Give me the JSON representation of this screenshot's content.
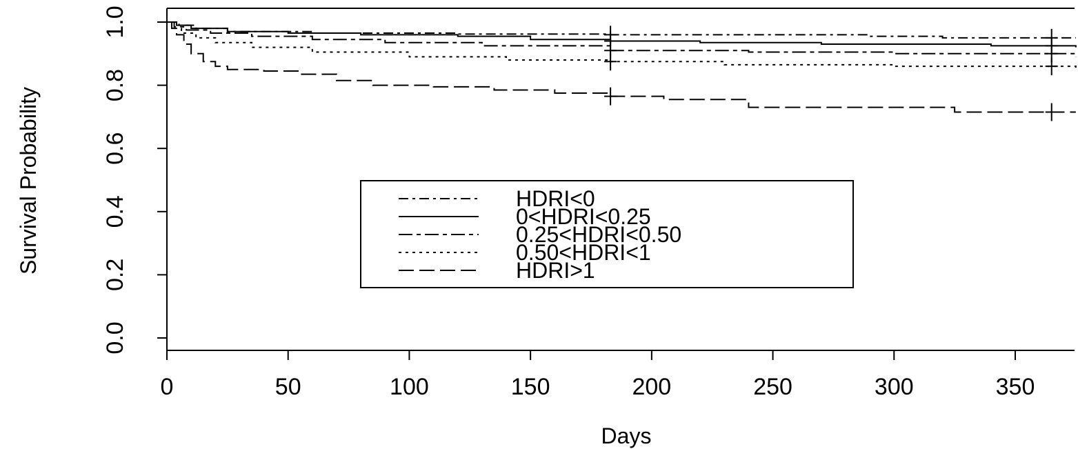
{
  "chart_data": {
    "type": "line",
    "title": "",
    "xlabel": "Days",
    "ylabel": "Survival Probability",
    "xlim": [
      0,
      375
    ],
    "ylim": [
      0,
      1
    ],
    "xticks": [
      0,
      50,
      100,
      150,
      200,
      250,
      300,
      350
    ],
    "yticks": [
      0.0,
      0.2,
      0.4,
      0.6,
      0.8,
      1.0
    ],
    "xtick_labels": [
      "0",
      "50",
      "100",
      "150",
      "200",
      "250",
      "300",
      "350"
    ],
    "ytick_labels": [
      "0.0",
      "0.2",
      "0.4",
      "0.6",
      "0.8",
      "1.0"
    ],
    "legend_position": "center",
    "censor_x": [
      183,
      365
    ],
    "series": [
      {
        "name": "HDRI<0",
        "style": "dashdot",
        "points": [
          [
            0,
            1.0
          ],
          [
            5,
            0.99
          ],
          [
            12,
            0.98
          ],
          [
            25,
            0.97
          ],
          [
            60,
            0.965
          ],
          [
            120,
            0.962
          ],
          [
            183,
            0.96
          ],
          [
            290,
            0.955
          ],
          [
            320,
            0.95
          ],
          [
            375,
            0.95
          ]
        ]
      },
      {
        "name": "0<HDRI<0.25",
        "style": "solid",
        "points": [
          [
            0,
            1.0
          ],
          [
            4,
            0.99
          ],
          [
            10,
            0.98
          ],
          [
            25,
            0.97
          ],
          [
            50,
            0.965
          ],
          [
            80,
            0.96
          ],
          [
            120,
            0.955
          ],
          [
            150,
            0.945
          ],
          [
            183,
            0.94
          ],
          [
            220,
            0.935
          ],
          [
            270,
            0.93
          ],
          [
            340,
            0.925
          ],
          [
            375,
            0.92
          ]
        ]
      },
      {
        "name": "0.25<HDRI<0.50",
        "style": "longdashdot",
        "points": [
          [
            0,
            1.0
          ],
          [
            3,
            0.985
          ],
          [
            8,
            0.975
          ],
          [
            18,
            0.965
          ],
          [
            35,
            0.955
          ],
          [
            60,
            0.945
          ],
          [
            90,
            0.935
          ],
          [
            130,
            0.925
          ],
          [
            183,
            0.91
          ],
          [
            240,
            0.905
          ],
          [
            300,
            0.9
          ],
          [
            375,
            0.89
          ]
        ]
      },
      {
        "name": "0.50<HDRI<1",
        "style": "dotted",
        "points": [
          [
            0,
            1.0
          ],
          [
            3,
            0.98
          ],
          [
            6,
            0.965
          ],
          [
            12,
            0.95
          ],
          [
            20,
            0.935
          ],
          [
            35,
            0.92
          ],
          [
            60,
            0.905
          ],
          [
            100,
            0.89
          ],
          [
            140,
            0.88
          ],
          [
            183,
            0.875
          ],
          [
            230,
            0.865
          ],
          [
            300,
            0.86
          ],
          [
            375,
            0.85
          ]
        ]
      },
      {
        "name": "HDRI>1",
        "style": "dashed",
        "points": [
          [
            0,
            1.0
          ],
          [
            2,
            0.98
          ],
          [
            4,
            0.96
          ],
          [
            7,
            0.93
          ],
          [
            10,
            0.9
          ],
          [
            15,
            0.875
          ],
          [
            20,
            0.86
          ],
          [
            25,
            0.85
          ],
          [
            40,
            0.845
          ],
          [
            55,
            0.835
          ],
          [
            70,
            0.815
          ],
          [
            85,
            0.8
          ],
          [
            110,
            0.795
          ],
          [
            135,
            0.785
          ],
          [
            160,
            0.775
          ],
          [
            183,
            0.765
          ],
          [
            205,
            0.755
          ],
          [
            240,
            0.73
          ],
          [
            290,
            0.73
          ],
          [
            325,
            0.715
          ],
          [
            375,
            0.715
          ]
        ]
      }
    ]
  }
}
